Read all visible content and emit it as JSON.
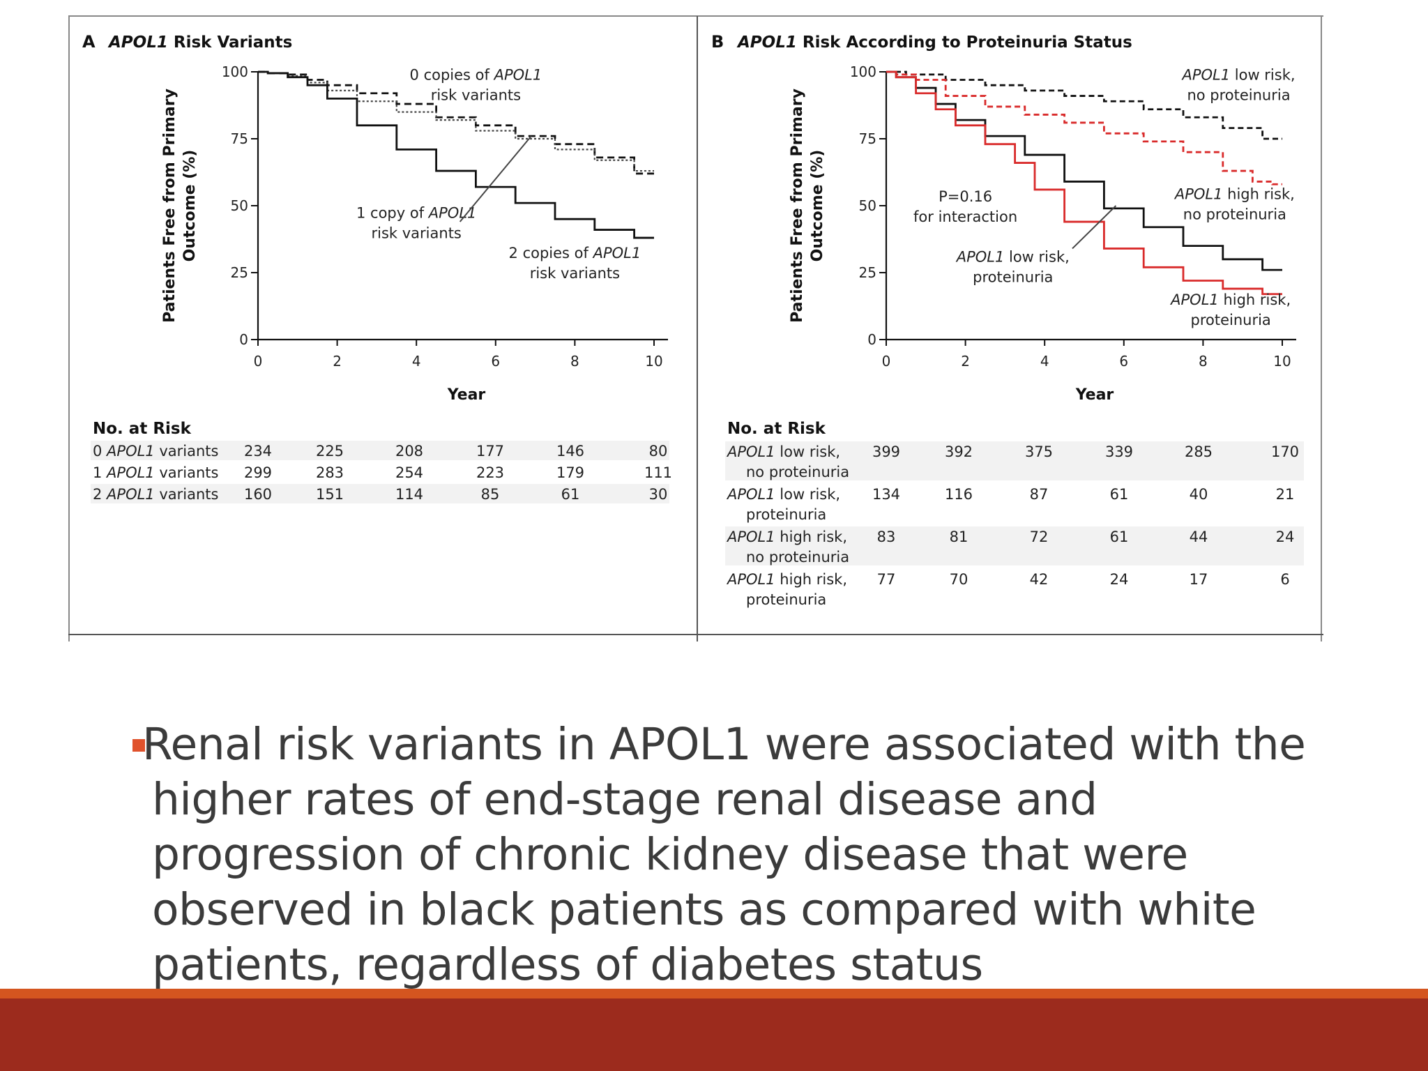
{
  "chart_data": [
    {
      "type": "line",
      "panel_letter": "A",
      "title_italic": "APOL1",
      "title_rest": " Risk Variants",
      "ylabel_line1": "Patients Free from Primary",
      "ylabel_line2": "Outcome (%)",
      "xlabel": "Year",
      "xlim": [
        0,
        10
      ],
      "ylim": [
        0,
        100
      ],
      "xticks": [
        0,
        2,
        4,
        6,
        8,
        10
      ],
      "yticks": [
        0,
        25,
        50,
        75,
        100
      ],
      "series": [
        {
          "name": "0 copies of APOL1 risk variants",
          "color": "#111111",
          "dash": "10,6",
          "x": [
            0,
            0.5,
            1,
            1.5,
            2,
            3,
            4,
            5,
            6,
            7,
            8,
            9,
            10
          ],
          "y": [
            100,
            99.5,
            99,
            97,
            95,
            92,
            88,
            83,
            80,
            76,
            73,
            68,
            62
          ]
        },
        {
          "name": "1 copy of APOL1 risk variants",
          "color": "#444444",
          "dash": "3,3",
          "x": [
            0,
            0.5,
            1,
            1.5,
            2,
            3,
            4,
            5,
            6,
            7,
            8,
            9,
            10
          ],
          "y": [
            100,
            99.5,
            98.5,
            96,
            93,
            89,
            85,
            82,
            78,
            75,
            71,
            67,
            63
          ]
        },
        {
          "name": "2 copies of APOL1 risk variants",
          "color": "#111111",
          "dash": "",
          "x": [
            0,
            0.5,
            1,
            1.5,
            2,
            3,
            4,
            5,
            6,
            7,
            8,
            9,
            10
          ],
          "y": [
            100,
            99.5,
            98,
            95,
            90,
            80,
            71,
            63,
            57,
            51,
            45,
            41,
            38
          ]
        }
      ],
      "annotations": [
        {
          "parts": [
            {
              "t": "0 copies of "
            },
            {
              "t": "APOL1",
              "i": true
            }
          ],
          "line2": "risk variants",
          "x": 5.5,
          "y": 97
        },
        {
          "parts": [
            {
              "t": "1 copy of "
            },
            {
              "t": "APOL1",
              "i": true
            }
          ],
          "line2": "risk variants",
          "x": 4.0,
          "y": 45.5
        },
        {
          "parts": [
            {
              "t": "2 copies of "
            },
            {
              "t": "APOL1",
              "i": true
            }
          ],
          "line2": "risk variants",
          "x": 8.0,
          "y": 30.5
        }
      ],
      "risk_table": {
        "header": "No. at Risk",
        "rows": [
          {
            "num": "0 ",
            "italic": "APOL1",
            "rest": " variants",
            "values": [
              "234",
              "225",
              "208",
              "177",
              "146",
              "80"
            ]
          },
          {
            "num": "1 ",
            "italic": "APOL1",
            "rest": " variants",
            "values": [
              "299",
              "283",
              "254",
              "223",
              "179",
              "111"
            ]
          },
          {
            "num": "2 ",
            "italic": "APOL1",
            "rest": " variants",
            "values": [
              "160",
              "151",
              "114",
              "85",
              "61",
              "30"
            ]
          }
        ]
      }
    },
    {
      "type": "line",
      "panel_letter": "B",
      "title_italic": "APOL1",
      "title_rest": " Risk According to Proteinuria Status",
      "ylabel_line1": "Patients Free from Primary",
      "ylabel_line2": "Outcome (%)",
      "xlabel": "Year",
      "xlim": [
        0,
        10
      ],
      "ylim": [
        0,
        100
      ],
      "xticks": [
        0,
        2,
        4,
        6,
        8,
        10
      ],
      "yticks": [
        0,
        25,
        50,
        75,
        100
      ],
      "series": [
        {
          "name": "APOL1 low risk, no proteinuria",
          "color": "#111111",
          "dash": "8,5",
          "x": [
            0,
            1,
            2,
            3,
            4,
            5,
            6,
            7,
            8,
            9,
            10
          ],
          "y": [
            100,
            99,
            97,
            95,
            93,
            91,
            89,
            86,
            83,
            79,
            75
          ]
        },
        {
          "name": "APOL1 high risk, no proteinuria",
          "color": "#d92b2b",
          "dash": "8,5",
          "x": [
            0,
            0.5,
            1,
            2,
            3,
            4,
            5,
            6,
            7,
            8,
            9,
            9.5,
            10
          ],
          "y": [
            100,
            99,
            97,
            91,
            87,
            84,
            81,
            77,
            74,
            70,
            63,
            59,
            58
          ]
        },
        {
          "name": "APOL1 low risk, proteinuria",
          "color": "#111111",
          "dash": "",
          "x": [
            0,
            0.5,
            1,
            1.5,
            2,
            3,
            4,
            5,
            6,
            7,
            8,
            9,
            10
          ],
          "y": [
            100,
            98,
            94,
            88,
            82,
            76,
            69,
            59,
            49,
            42,
            35,
            30,
            26
          ]
        },
        {
          "name": "APOL1 high risk, proteinuria",
          "color": "#d92b2b",
          "dash": "",
          "x": [
            0,
            0.5,
            1,
            1.5,
            2,
            3,
            3.5,
            4,
            5,
            6,
            7,
            8,
            9,
            10
          ],
          "y": [
            100,
            98,
            92,
            86,
            80,
            73,
            66,
            56,
            44,
            34,
            27,
            22,
            19,
            17
          ]
        }
      ],
      "annotations": [
        {
          "parts": [
            {
              "t": "APOL1",
              "i": true
            },
            {
              "t": " low risk,"
            }
          ],
          "line2": "no proteinuria",
          "x": 8.9,
          "y": 97
        },
        {
          "parts": [
            {
              "t": "APOL1",
              "i": true
            },
            {
              "t": " high risk,"
            }
          ],
          "line2": "no proteinuria",
          "x": 8.8,
          "y": 52.5
        },
        {
          "parts": [
            {
              "t": "P=0.16"
            }
          ],
          "line2": "for interaction",
          "x": 2.0,
          "y": 51.5
        },
        {
          "parts": [
            {
              "t": "APOL1",
              "i": true
            },
            {
              "t": " low risk,"
            }
          ],
          "line2": "proteinuria",
          "x": 3.2,
          "y": 29
        },
        {
          "parts": [
            {
              "t": "APOL1",
              "i": true
            },
            {
              "t": " high risk,"
            }
          ],
          "line2": "proteinuria",
          "x": 8.7,
          "y": 13
        }
      ],
      "risk_table": {
        "header": "No. at Risk",
        "rows": [
          {
            "italic": "APOL1",
            "rest": " low risk,",
            "sub": "no proteinuria",
            "values": [
              "399",
              "392",
              "375",
              "339",
              "285",
              "170"
            ]
          },
          {
            "italic": "APOL1",
            "rest": " low risk,",
            "sub": "proteinuria",
            "values": [
              "134",
              "116",
              "87",
              "61",
              "40",
              "21"
            ]
          },
          {
            "italic": "APOL1",
            "rest": " high risk,",
            "sub": "no proteinuria",
            "values": [
              "83",
              "81",
              "72",
              "61",
              "44",
              "24"
            ]
          },
          {
            "italic": "APOL1",
            "rest": " high risk,",
            "sub": "proteinuria",
            "values": [
              "77",
              "70",
              "42",
              "24",
              "17",
              "6"
            ]
          }
        ]
      }
    }
  ],
  "slide": {
    "bullet_text": "Renal risk variants in APOL1 were associated with the higher rates of end-stage renal disease and progression of chronic kidney disease that were observed in black patients as compared with white patients, regardless of diabetes status",
    "accent_color": "#e0522c",
    "footer_color": "#9c2b1d"
  }
}
